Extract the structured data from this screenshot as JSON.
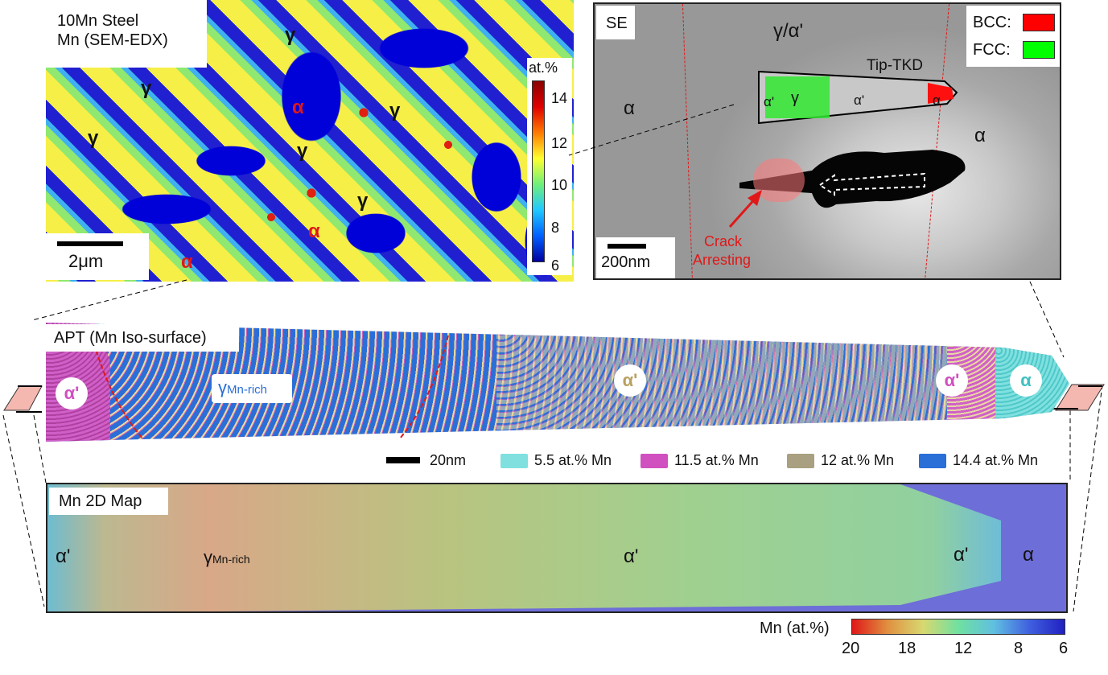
{
  "edx_panel": {
    "title_line1": "10Mn Steel",
    "title_line2": "Mn (SEM-EDX)",
    "scale_bar": "2μm",
    "colorbar": {
      "unit": "at.%",
      "ticks": [
        "14",
        "12",
        "10",
        "8",
        "6"
      ]
    },
    "labels": [
      {
        "text": "γ",
        "color": "black"
      },
      {
        "text": "γ",
        "color": "black"
      },
      {
        "text": "γ",
        "color": "black"
      },
      {
        "text": "γ",
        "color": "black"
      },
      {
        "text": "γ",
        "color": "black"
      },
      {
        "text": "γ",
        "color": "black"
      },
      {
        "text": "α",
        "color": "red"
      },
      {
        "text": "α",
        "color": "red"
      },
      {
        "text": "α",
        "color": "red"
      }
    ]
  },
  "se_panel": {
    "title": "SE",
    "legend": [
      {
        "label": "BCC:",
        "color": "#ff0000"
      },
      {
        "label": "FCC:",
        "color": "#00ff00"
      }
    ],
    "top_label": "γ/α'",
    "tkd_label": "Tip-TKD",
    "tkd_phases": [
      "α'",
      "γ",
      "α'",
      "α"
    ],
    "side_labels": [
      "α",
      "α"
    ],
    "crack_label_line1": "Crack",
    "crack_label_line2": "Arresting",
    "scale_bar": "200nm"
  },
  "apt_panel": {
    "title": "APT (Mn Iso-surface)",
    "phases": [
      {
        "text": "α'",
        "color": "#d050c0"
      },
      {
        "text": "γ",
        "sub": "Mn-rich",
        "color": "#2a6ed8"
      },
      {
        "text": "α'",
        "color": "#b8a060"
      },
      {
        "text": "α'",
        "color": "#d050c0"
      },
      {
        "text": "α",
        "color": "#40c0c0"
      }
    ],
    "scale_bar": "20nm",
    "legend": [
      {
        "label": "5.5 at.% Mn",
        "color": "#80e0e0"
      },
      {
        "label": "11.5 at.% Mn",
        "color": "#d050c0"
      },
      {
        "label": "12 at.% Mn",
        "color": "#a8a080"
      },
      {
        "label": "14.4 at.% Mn",
        "color": "#2a6ed8"
      }
    ]
  },
  "map_panel": {
    "title": "Mn 2D Map",
    "phases": [
      {
        "text": "α'"
      },
      {
        "text": "γ",
        "sub": "Mn-rich"
      },
      {
        "text": "α'"
      },
      {
        "text": "α'"
      },
      {
        "text": "α"
      }
    ],
    "colorbar": {
      "title": "Mn (at.%)",
      "ticks": [
        "20",
        "18",
        "12",
        "8",
        "6"
      ]
    }
  }
}
